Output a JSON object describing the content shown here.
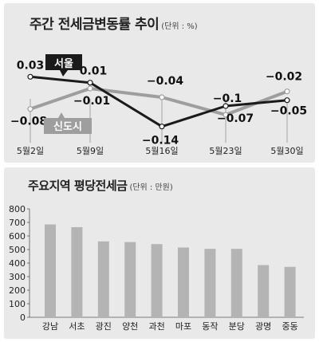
{
  "line_title": "주간  전세금변동률  추이",
  "line_unit": "(단위 : %)",
  "bar_title": "주요지역  평당전세금",
  "bar_unit": "(단위 : 만원)",
  "colors": {
    "seoul": "#1a1a1a",
    "newtown": "#9e9e9e",
    "bar": "#b4b4b4",
    "panel": "#e9e9ea"
  },
  "chart_data": [
    {
      "type": "line",
      "title": "주간  전세금변동률  추이",
      "categories": [
        "5월2일",
        "5월9일",
        "5월16일",
        "5월23일",
        "5월30일"
      ],
      "series": [
        {
          "name": "서울",
          "values": [
            0.03,
            0.01,
            -0.14,
            -0.07,
            -0.05
          ],
          "labels": [
            "0.03",
            "0.01",
            "−0.14",
            "−0.07",
            "−0.05"
          ]
        },
        {
          "name": "신도시",
          "values": [
            -0.08,
            -0.01,
            -0.04,
            -0.1,
            -0.02
          ],
          "labels": [
            "−0.08",
            "−0.01",
            "−0.04",
            "−0.1",
            "−0.02"
          ]
        }
      ],
      "ylim": [
        -0.16,
        0.05
      ],
      "grid": false
    },
    {
      "type": "bar",
      "title": "주요지역  평당전세금",
      "categories": [
        "강남",
        "서초",
        "광진",
        "양천",
        "과천",
        "마포",
        "동작",
        "분당",
        "광명",
        "중동"
      ],
      "values": [
        685,
        665,
        560,
        555,
        540,
        515,
        505,
        505,
        385,
        372
      ],
      "yticks": [
        "0",
        "100",
        "200",
        "300",
        "400",
        "500",
        "600",
        "700",
        "800"
      ],
      "ylim": [
        0,
        800
      ],
      "grid": false
    }
  ]
}
